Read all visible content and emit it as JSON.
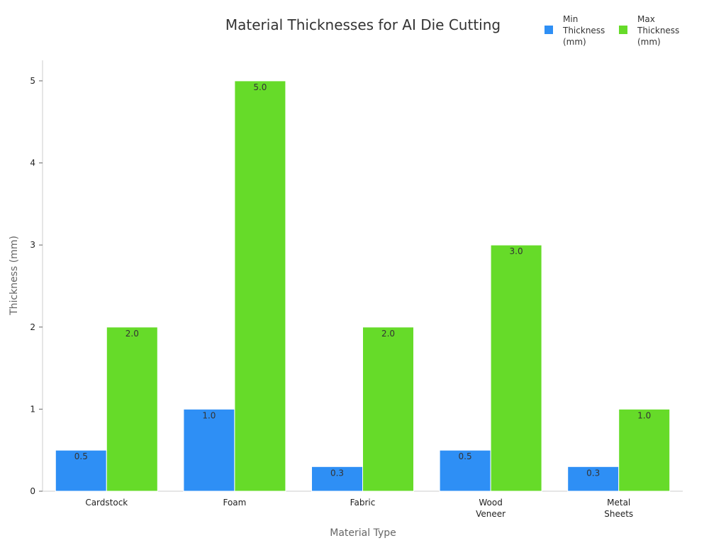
{
  "chart_data": {
    "type": "bar",
    "title": "Material Thicknesses for AI Die Cutting",
    "xlabel": "Material Type",
    "ylabel": "Thickness (mm)",
    "categories": [
      [
        "Cardstock"
      ],
      [
        "Foam"
      ],
      [
        "Fabric"
      ],
      [
        "Wood",
        "Veneer"
      ],
      [
        "Metal",
        "Sheets"
      ]
    ],
    "series": [
      {
        "name": [
          "Min",
          "Thickness",
          "(mm)"
        ],
        "values": [
          0.5,
          1.0,
          0.3,
          0.5,
          0.3
        ],
        "color": "#2E8FF5"
      },
      {
        "name": [
          "Max",
          "Thickness",
          "(mm)"
        ],
        "values": [
          2.0,
          5.0,
          2.0,
          3.0,
          1.0
        ],
        "color": "#66DB29"
      }
    ],
    "ylim": [
      0,
      5.25
    ],
    "yticks": [
      0,
      1,
      2,
      3,
      4,
      5
    ],
    "grid": false,
    "legend_position": "top-right",
    "data_labels": true
  }
}
